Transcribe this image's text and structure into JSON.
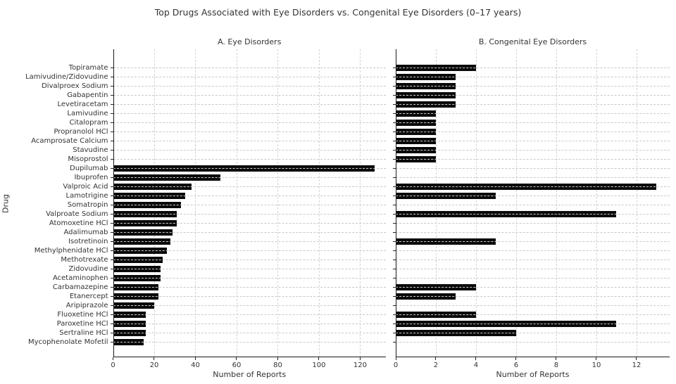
{
  "chart_data": {
    "type": "bar",
    "orientation": "horizontal",
    "title": "Top Drugs Associated with Eye Disorders vs. Congenital Eye Disorders (0–17 years)",
    "ylabel": "Drug",
    "grid": true,
    "bar_color": "#0a0a0a",
    "categories": [
      "Topiramate",
      "Lamivudine/Zidovudine",
      "Divalproex Sodium",
      "Gabapentin",
      "Levetiracetam",
      "Lamivudine",
      "Citalopram",
      "Propranolol HCl",
      "Acamprosate Calcium",
      "Stavudine",
      "Misoprostol",
      "Dupilumab",
      "Ibuprofen",
      "Valproic Acid",
      "Lamotrigine",
      "Somatropin",
      "Valproate Sodium",
      "Atomoxetine HCl",
      "Adalimumab",
      "Isotretinoin",
      "Methylphenidate HCl",
      "Methotrexate",
      "Zidovudine",
      "Acetaminophen",
      "Carbamazepine",
      "Etanercept",
      "Aripiprazole",
      "Fluoxetine HCl",
      "Paroxetine HCl",
      "Sertraline HCl",
      "Mycophenolate Mofetil"
    ],
    "series": [
      {
        "name": "A. Eye Disorders",
        "xlabel": "Number of Reports",
        "xlim": [
          0,
          132.5
        ],
        "xticks": [
          0,
          20,
          40,
          60,
          80,
          100,
          120
        ],
        "values": [
          0,
          0,
          0,
          0,
          0,
          0,
          0,
          0,
          0,
          0,
          0,
          127,
          52,
          38,
          35,
          33,
          31,
          31,
          29,
          28,
          26,
          24,
          23,
          23,
          22,
          22,
          20,
          16,
          16,
          16,
          15
        ]
      },
      {
        "name": "B. Congenital Eye Disorders",
        "xlabel": "Number of Reports",
        "xlim": [
          0,
          13.65
        ],
        "xticks": [
          0,
          2,
          4,
          6,
          8,
          10,
          12
        ],
        "values": [
          4,
          3,
          3,
          3,
          3,
          2,
          2,
          2,
          2,
          2,
          2,
          0,
          0,
          13,
          5,
          0,
          11,
          0,
          0,
          5,
          0,
          0,
          0,
          0,
          4,
          3,
          0,
          4,
          11,
          6,
          0
        ]
      }
    ]
  }
}
